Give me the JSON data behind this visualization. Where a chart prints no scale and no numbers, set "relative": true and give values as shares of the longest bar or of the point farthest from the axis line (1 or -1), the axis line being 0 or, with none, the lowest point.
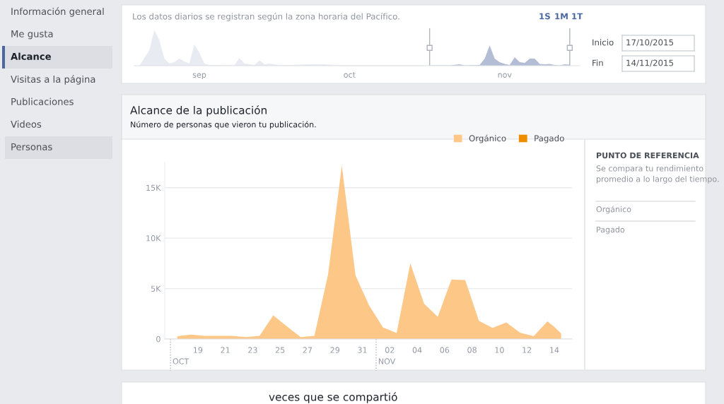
{
  "chart_data": [
    {
      "type": "area",
      "relative": true,
      "title": "Los datos diarios se registran según la zona horaria del Pacífico.",
      "annotations": [
        "1S",
        "1M",
        "1T",
        "Inicio",
        "17/10/2015",
        "Fin",
        "14/11/2015"
      ],
      "xlim": [
        "2015-08-19",
        "2015-11-16"
      ],
      "xticks": [
        {
          "value": "2015-09-01",
          "label": "sep"
        },
        {
          "value": "2015-10-01",
          "label": "oct"
        },
        {
          "value": "2015-11-01",
          "label": "nov"
        }
      ],
      "ref_lines": [
        {
          "axis": "x",
          "value": "2015-10-17",
          "label": null,
          "color": "#b0b4bd"
        },
        {
          "axis": "x",
          "value": "2015-11-14",
          "label": null,
          "color": "#b0b4bd"
        }
      ],
      "series": [
        {
          "color": "#e9ebf2",
          "x": [
            "2015-08-20",
            "2015-08-22",
            "2015-08-23",
            "2015-08-24",
            "2015-08-25",
            "2015-08-26",
            "2015-08-27",
            "2015-08-28",
            "2015-08-29",
            "2015-08-30",
            "2015-08-31",
            "2015-09-01",
            "2015-09-02",
            "2015-09-03",
            "2015-09-08",
            "2015-09-09",
            "2015-09-10",
            "2015-09-12",
            "2015-09-13",
            "2015-09-14",
            "2015-09-15",
            "2015-09-16",
            "2015-09-17",
            "2015-09-23",
            "2015-09-26",
            "2015-09-29",
            "2015-10-06",
            "2015-10-17"
          ],
          "values": [
            0,
            0.43,
            1.0,
            0.72,
            0.2,
            0.06,
            0.1,
            0.2,
            0.12,
            0.06,
            0.6,
            0.36,
            0.06,
            0.02,
            0.01,
            0.22,
            0.06,
            0.02,
            0.15,
            0.04,
            0.06,
            0.04,
            0.01,
            0.04,
            0.04,
            0.01,
            0.01,
            0.01
          ]
        },
        {
          "color": "#b4bdd6",
          "x": [
            "2015-10-17",
            "2015-10-21",
            "2015-10-23",
            "2015-10-24",
            "2015-10-27",
            "2015-10-28",
            "2015-10-29",
            "2015-10-30",
            "2015-10-31",
            "2015-11-01",
            "2015-11-02",
            "2015-11-03",
            "2015-11-04",
            "2015-11-05",
            "2015-11-06",
            "2015-11-07",
            "2015-11-08",
            "2015-11-09",
            "2015-11-10",
            "2015-11-11",
            "2015-11-12",
            "2015-11-13",
            "2015-11-14"
          ],
          "values": [
            0.01,
            0.01,
            0.04,
            0.01,
            0.02,
            0.2,
            0.57,
            0.2,
            0.1,
            0.05,
            0.02,
            0.24,
            0.1,
            0.08,
            0.2,
            0.2,
            0.05,
            0.04,
            0.05,
            0.02,
            0.01,
            0.04,
            0.03
          ]
        }
      ]
    },
    {
      "type": "area",
      "title": "Alcance de la publicación",
      "subtitle": "Número de personas que vieron tu publicación.",
      "annotations": [
        "PUNTO DE REFERENCIA",
        "Se compara tu rendimiento promedio a lo largo del tiempo.",
        "Orgánico",
        "Pagado"
      ],
      "x": [
        "2015-10-17T12:00",
        "2015-10-18T12:00",
        "2015-10-19T12:00",
        "2015-10-20T12:00",
        "2015-10-21T12:00",
        "2015-10-22T12:00",
        "2015-10-23T12:00",
        "2015-10-24T12:00",
        "2015-10-25T12:00",
        "2015-10-26T12:00",
        "2015-10-27T12:00",
        "2015-10-28T12:00",
        "2015-10-29T12:00",
        "2015-10-30T12:00",
        "2015-10-31T12:00",
        "2015-11-01T12:00",
        "2015-11-02T12:00",
        "2015-11-03T12:00",
        "2015-11-04T12:00",
        "2015-11-05T12:00",
        "2015-11-06T12:00",
        "2015-11-07T12:00",
        "2015-11-08T12:00",
        "2015-11-09T12:00",
        "2015-11-10T12:00",
        "2015-11-11T12:00",
        "2015-11-12T12:00",
        "2015-11-13T12:00",
        "2015-11-14T00:00",
        "2015-11-14T12:00"
      ],
      "xlim": [
        "2015-10-16T14:00",
        "2015-11-15T07:00"
      ],
      "ylim": [
        0,
        17500
      ],
      "xticks": [
        {
          "value": "2015-10-19",
          "label": "19"
        },
        {
          "value": "2015-10-21",
          "label": "21"
        },
        {
          "value": "2015-10-23",
          "label": "23"
        },
        {
          "value": "2015-10-25",
          "label": "25"
        },
        {
          "value": "2015-10-27",
          "label": "27"
        },
        {
          "value": "2015-10-29",
          "label": "29"
        },
        {
          "value": "2015-10-31",
          "label": "31"
        },
        {
          "value": "2015-11-02",
          "label": "02"
        },
        {
          "value": "2015-11-04",
          "label": "04"
        },
        {
          "value": "2015-11-06",
          "label": "06"
        },
        {
          "value": "2015-11-08",
          "label": "08"
        },
        {
          "value": "2015-11-10",
          "label": "10"
        },
        {
          "value": "2015-11-12",
          "label": "12"
        },
        {
          "value": "2015-11-14",
          "label": "14"
        }
      ],
      "yticks": [
        0,
        {
          "value": 5000,
          "label": "5K"
        },
        {
          "value": 10000,
          "label": "10K"
        },
        {
          "value": 15000,
          "label": "15K"
        }
      ],
      "ref_lines": [
        {
          "axis": "x",
          "value": "2015-10-17",
          "label": "OCT",
          "color": "#b0b4bd",
          "line_style": "dotted"
        },
        {
          "axis": "x",
          "value": "2015-11-01",
          "label": "NOV",
          "color": "#b0b4bd",
          "line_style": "dotted"
        }
      ],
      "grid": "y",
      "legend": "top right",
      "series": [
        {
          "name": "Orgánico",
          "color": "#fdc788",
          "values": [
            280,
            440,
            310,
            310,
            310,
            190,
            310,
            2350,
            1250,
            190,
            310,
            6400,
            17200,
            6300,
            3300,
            1150,
            600,
            7500,
            3500,
            2200,
            5900,
            5850,
            1800,
            1100,
            1650,
            630,
            280,
            1750,
            1200,
            550
          ]
        },
        {
          "name": "Pagado",
          "color": "#f08c00",
          "values": [
            null,
            null,
            null,
            null,
            null,
            null,
            null,
            null,
            null,
            null,
            null,
            null,
            null,
            null,
            null,
            null,
            null,
            null,
            null,
            null,
            null,
            null,
            null,
            null,
            null,
            null,
            null,
            null,
            null,
            null
          ]
        }
      ]
    },
    {
      "type": "other",
      "annotations": [
        "Información general",
        "Me gusta",
        "Alcance",
        "Visitas a la página",
        "Publicaciones",
        "Videos",
        "Personas",
        "veces que se compartió"
      ]
    }
  ]
}
